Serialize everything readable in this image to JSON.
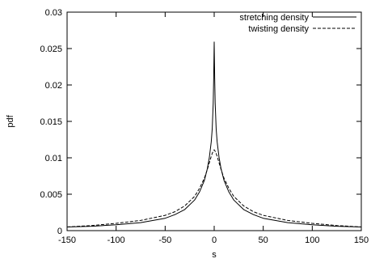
{
  "chart_data": {
    "type": "line",
    "title": "",
    "xlabel": "s",
    "ylabel": "pdf",
    "xlim": [
      -150,
      150
    ],
    "ylim": [
      0,
      0.03
    ],
    "grid": false,
    "legend_position": "top-right",
    "xticks": [
      -150,
      -100,
      -50,
      0,
      50,
      100,
      150
    ],
    "xtick_labels": [
      "-150",
      "-100",
      "-50",
      "0",
      "50",
      "100",
      "150"
    ],
    "yticks": [
      0,
      0.005,
      0.01,
      0.015,
      0.02,
      0.025,
      0.03
    ],
    "ytick_labels": [
      "0",
      "0.005",
      "0.01",
      "0.015",
      "0.02",
      "0.025",
      "0.03"
    ],
    "series": [
      {
        "name": "stretching density",
        "style": "solid",
        "color": "#000000",
        "x": [
          -150,
          -125,
          -100,
          -75,
          -50,
          -40,
          -30,
          -20,
          -15,
          -10,
          -7,
          -5,
          -3,
          -2,
          -1,
          -0.5,
          0,
          0.5,
          1,
          2,
          3,
          5,
          7,
          10,
          15,
          20,
          30,
          40,
          50,
          75,
          100,
          125,
          150
        ],
        "y": [
          0.0005,
          0.0006,
          0.0008,
          0.0011,
          0.0017,
          0.0022,
          0.0029,
          0.0042,
          0.0053,
          0.0069,
          0.0085,
          0.01,
          0.0122,
          0.014,
          0.0175,
          0.021,
          0.0259,
          0.021,
          0.0175,
          0.014,
          0.0122,
          0.01,
          0.0085,
          0.0069,
          0.0053,
          0.0042,
          0.0029,
          0.0022,
          0.0017,
          0.0011,
          0.0008,
          0.0006,
          0.0005
        ]
      },
      {
        "name": "twisting density",
        "style": "dashed",
        "color": "#000000",
        "x": [
          -150,
          -125,
          -100,
          -75,
          -50,
          -40,
          -30,
          -20,
          -15,
          -10,
          -7,
          -5,
          -3,
          -2,
          -1,
          0,
          1,
          2,
          3,
          5,
          7,
          10,
          15,
          20,
          30,
          40,
          50,
          75,
          100,
          125,
          150
        ],
        "y": [
          0.0005,
          0.0007,
          0.001,
          0.0014,
          0.0021,
          0.0026,
          0.0034,
          0.0047,
          0.0058,
          0.0072,
          0.0084,
          0.0093,
          0.0102,
          0.0106,
          0.0109,
          0.0111,
          0.0109,
          0.0106,
          0.0102,
          0.0093,
          0.0084,
          0.0072,
          0.0058,
          0.0047,
          0.0034,
          0.0026,
          0.0021,
          0.0014,
          0.001,
          0.0007,
          0.0005
        ]
      }
    ]
  }
}
